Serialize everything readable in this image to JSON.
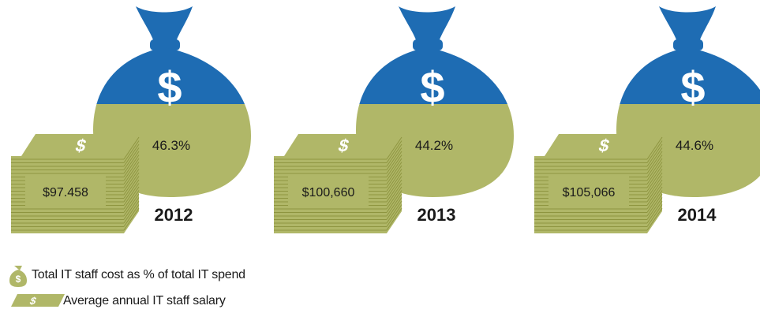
{
  "chart_data": {
    "type": "infographic",
    "series": [
      {
        "name": "Total IT staff cost as % of total IT spend",
        "values": [
          46.3,
          44.2,
          44.6
        ],
        "value_labels": [
          "46.3%",
          "44.2%",
          "44.6%"
        ]
      },
      {
        "name": "Average annual IT staff salary",
        "values": [
          97458,
          100660,
          105066
        ],
        "value_labels": [
          "$97.458",
          "$100,660",
          "$105,066"
        ]
      }
    ],
    "categories": [
      "2012",
      "2013",
      "2014"
    ]
  },
  "legend": {
    "bag_label": "Total IT staff cost as % of total IT spend",
    "bag_symbol": "$",
    "cash_label": "Average annual IT staff salary",
    "cash_symbol": "$"
  },
  "colors": {
    "bag_top": "#1e6cb3",
    "bag_bottom": "#b0b768",
    "cash": "#b0b768",
    "cash_line": "#8e9540",
    "symbol": "#ffffff",
    "text": "#1a1a1a"
  },
  "icons": {
    "bag": "money-bag-icon",
    "cash": "cash-stack-icon"
  }
}
